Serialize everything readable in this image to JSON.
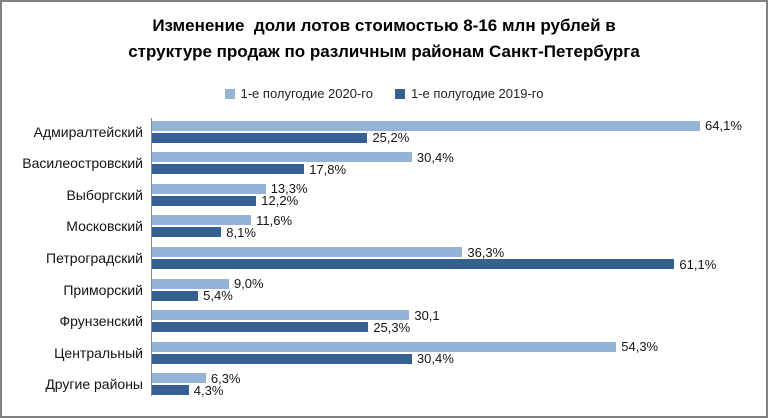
{
  "frame": {
    "background": "#ffffff",
    "border_color": "#818181"
  },
  "chart_data": {
    "type": "bar",
    "orientation": "horizontal",
    "title": "Изменение  доли лотов стоимостью 8-16 млн рублей в структуре продаж по различным районам Санкт-Петербурга",
    "title_lines": [
      "Изменение  доли лотов стоимостью 8-16 млн рублей в",
      "структуре продаж по различным районам Санкт-Петербурга"
    ],
    "categories": [
      "Адмиралтейский",
      "Василеостровский",
      "Выборгский",
      "Московский",
      "Петроградский",
      "Приморский",
      "Фрунзенский",
      "Центральный",
      "Другие районы"
    ],
    "series": [
      {
        "name": "1-е полугодие 2020-го",
        "color": "#95B3D7",
        "values": [
          64.1,
          30.4,
          13.3,
          11.6,
          36.3,
          9.0,
          30.1,
          54.3,
          6.3
        ],
        "labels": [
          "64,1%",
          "30,4%",
          "13,3%",
          "11,6%",
          "36,3%",
          "9,0%",
          "30,1",
          "54,3%",
          "6,3%"
        ]
      },
      {
        "name": "1-е полугодие 2019-го",
        "color": "#376092",
        "values": [
          25.2,
          17.8,
          12.2,
          8.1,
          61.1,
          5.4,
          25.3,
          30.4,
          4.3
        ],
        "labels": [
          "25,2%",
          "17,8%",
          "12,2%",
          "8,1%",
          "61,1%",
          "5,4%",
          "25,3%",
          "30,4%",
          "4,3%"
        ]
      }
    ],
    "xlim": [
      0,
      70
    ],
    "xlabel": "",
    "ylabel": "",
    "grid": false,
    "value_labels": true,
    "legend_position": "top"
  }
}
